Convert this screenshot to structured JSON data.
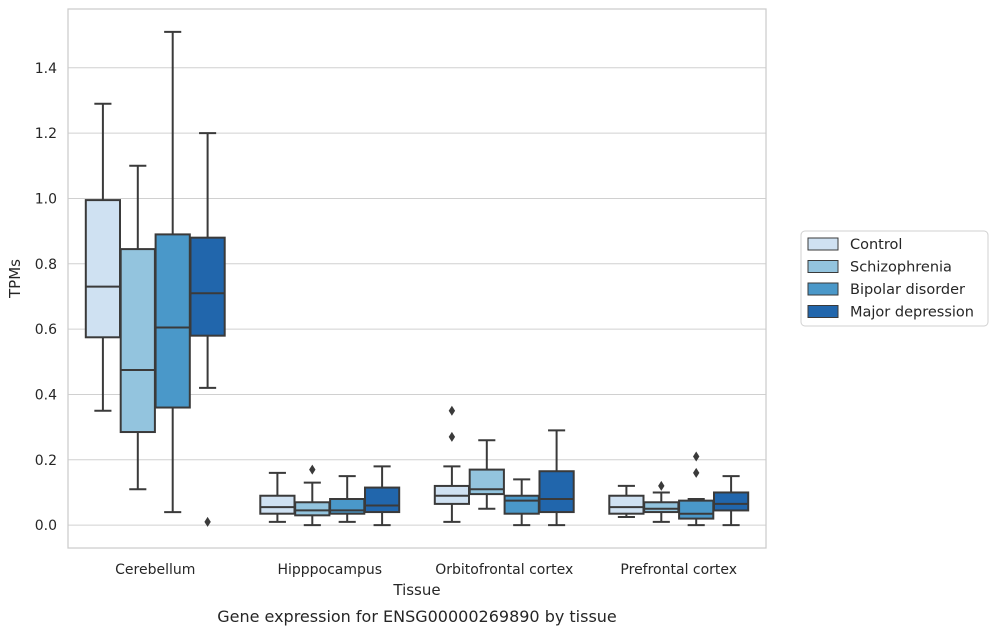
{
  "caption": "Gene expression for ENSG00000269890 by tissue",
  "chart_data": {
    "type": "box",
    "title": "",
    "xlabel": "Tissue",
    "ylabel": "TPMs",
    "ylim": [
      -0.07,
      1.58
    ],
    "yticks": [
      "0.0",
      "0.2",
      "0.4",
      "0.6",
      "0.8",
      "1.0",
      "1.2",
      "1.4"
    ],
    "grid": "horizontal",
    "legend_position": "right",
    "categories": [
      "Cerebellum",
      "Hipppocampus",
      "Orbitofrontal cortex",
      "Prefrontal cortex"
    ],
    "series": [
      {
        "name": "Control",
        "color": "#cfe1f2",
        "boxes": [
          {
            "whislo": 0.35,
            "q1": 0.575,
            "med": 0.73,
            "q3": 0.995,
            "whishi": 1.29,
            "fliers": []
          },
          {
            "whislo": 0.01,
            "q1": 0.035,
            "med": 0.055,
            "q3": 0.09,
            "whishi": 0.16,
            "fliers": []
          },
          {
            "whislo": 0.01,
            "q1": 0.065,
            "med": 0.09,
            "q3": 0.12,
            "whishi": 0.18,
            "fliers": [
              0.27,
              0.35
            ]
          },
          {
            "whislo": 0.025,
            "q1": 0.035,
            "med": 0.055,
            "q3": 0.09,
            "whishi": 0.12,
            "fliers": []
          }
        ]
      },
      {
        "name": "Schizophrenia",
        "color": "#93c4de",
        "boxes": [
          {
            "whislo": 0.11,
            "q1": 0.285,
            "med": 0.475,
            "q3": 0.845,
            "whishi": 1.1,
            "fliers": []
          },
          {
            "whislo": 0.0,
            "q1": 0.03,
            "med": 0.045,
            "q3": 0.07,
            "whishi": 0.13,
            "fliers": [
              0.17
            ]
          },
          {
            "whislo": 0.05,
            "q1": 0.095,
            "med": 0.11,
            "q3": 0.17,
            "whishi": 0.26,
            "fliers": []
          },
          {
            "whislo": 0.01,
            "q1": 0.04,
            "med": 0.05,
            "q3": 0.07,
            "whishi": 0.1,
            "fliers": [
              0.12
            ]
          }
        ]
      },
      {
        "name": "Bipolar disorder",
        "color": "#4a98c9",
        "boxes": [
          {
            "whislo": 0.04,
            "q1": 0.36,
            "med": 0.605,
            "q3": 0.89,
            "whishi": 1.51,
            "fliers": []
          },
          {
            "whislo": 0.01,
            "q1": 0.035,
            "med": 0.045,
            "q3": 0.08,
            "whishi": 0.15,
            "fliers": []
          },
          {
            "whislo": 0.0,
            "q1": 0.035,
            "med": 0.075,
            "q3": 0.09,
            "whishi": 0.14,
            "fliers": []
          },
          {
            "whislo": 0.0,
            "q1": 0.02,
            "med": 0.035,
            "q3": 0.075,
            "whishi": 0.08,
            "fliers": [
              0.16,
              0.21
            ]
          }
        ]
      },
      {
        "name": "Major depression",
        "color": "#2166ac",
        "boxes": [
          {
            "whislo": 0.42,
            "q1": 0.58,
            "med": 0.71,
            "q3": 0.88,
            "whishi": 1.2,
            "fliers": [
              0.01
            ]
          },
          {
            "whislo": 0.0,
            "q1": 0.04,
            "med": 0.06,
            "q3": 0.115,
            "whishi": 0.18,
            "fliers": []
          },
          {
            "whislo": 0.0,
            "q1": 0.04,
            "med": 0.08,
            "q3": 0.165,
            "whishi": 0.29,
            "fliers": []
          },
          {
            "whislo": 0.0,
            "q1": 0.045,
            "med": 0.065,
            "q3": 0.1,
            "whishi": 0.15,
            "fliers": []
          }
        ]
      }
    ]
  }
}
